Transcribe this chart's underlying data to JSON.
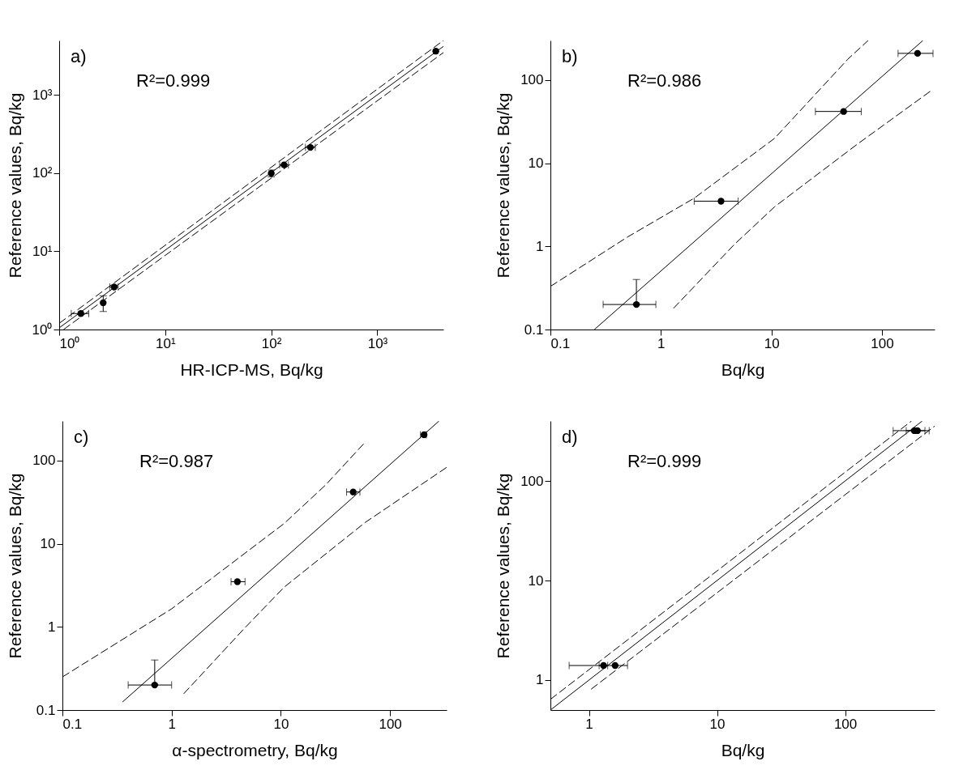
{
  "chart_data": [
    {
      "type": "scatter",
      "xlabel": "HR-ICP-MS, Bq/kg",
      "ylabel": "Reference values, Bq/kg",
      "annotations": [
        "a)",
        "R²=0.999"
      ],
      "log": "xy",
      "xlim": [
        1,
        4200
      ],
      "ylim": [
        1,
        5000
      ],
      "xticks": [
        {
          "value": 1,
          "label": "10⁰"
        },
        {
          "value": 10,
          "label": "10¹"
        },
        {
          "value": 100,
          "label": "10²"
        },
        {
          "value": 1000,
          "label": "10³"
        }
      ],
      "yticks": [
        {
          "value": 1,
          "label": "10⁰"
        },
        {
          "value": 10,
          "label": "10¹"
        },
        {
          "value": 100,
          "label": "10²"
        },
        {
          "value": 1000,
          "label": "10³"
        }
      ],
      "series": [
        {
          "marker": "circle",
          "color": "#000000",
          "x": [
            1.6,
            2.6,
            3.3,
            100,
            132,
            234,
            3560
          ],
          "values": [
            1.6,
            2.2,
            3.5,
            100,
            128,
            214,
            3650
          ],
          "errors": [
            null,
            [
              1.7,
              2.7
            ],
            null,
            [
              90,
              110
            ],
            null,
            null,
            null
          ],
          "xerrors": [
            [
              1.3,
              1.9
            ],
            null,
            [
              3.0,
              3.6
            ],
            null,
            [
              120,
              145
            ],
            [
              210,
              260
            ],
            null
          ]
        },
        {
          "type": "line",
          "color": "#000000",
          "line_style": "solid",
          "x": [
            1,
            4200
          ],
          "values": [
            1.05,
            4200
          ]
        },
        {
          "type": "line",
          "color": "#000000",
          "line_style": "dashed",
          "x": [
            1,
            4200
          ],
          "values": [
            1.2,
            5000
          ]
        },
        {
          "type": "line",
          "color": "#000000",
          "line_style": "dashed",
          "x": [
            1.1,
            4200
          ],
          "values": [
            1,
            3500
          ]
        }
      ]
    },
    {
      "type": "scatter",
      "xlabel": "Bq/kg",
      "ylabel": "Reference values, Bq/kg",
      "annotations": [
        "b)",
        "R²=0.986"
      ],
      "log": "xy",
      "xlim": [
        0.1,
        300
      ],
      "ylim": [
        0.1,
        300
      ],
      "xticks": [
        0.1,
        1,
        10,
        100
      ],
      "yticks": [
        0.1,
        1,
        10,
        100
      ],
      "series": [
        {
          "marker": "circle",
          "color": "#000000",
          "x": [
            0.6,
            3.5,
            45,
            210
          ],
          "values": [
            0.2,
            3.5,
            42,
            210
          ],
          "errors": [
            [
              0.2,
              0.4
            ],
            null,
            null,
            null
          ],
          "xerrors": [
            [
              0.3,
              0.9
            ],
            [
              2,
              5
            ],
            [
              25,
              65
            ],
            [
              140,
              290
            ]
          ]
        },
        {
          "type": "line",
          "color": "#000000",
          "line_style": "solid",
          "x": [
            0.25,
            235
          ],
          "values": [
            0.1,
            300
          ]
        },
        {
          "type": "line",
          "color": "#000000",
          "line_style": "dashed",
          "x": [
            0.1,
            0.5,
            2,
            10.7,
            49,
            75
          ],
          "values": [
            0.33,
            1.3,
            3.8,
            20,
            178,
            300
          ]
        },
        {
          "type": "line",
          "color": "#000000",
          "line_style": "dashed",
          "x": [
            1.3,
            4.6,
            10.7,
            60,
            276
          ],
          "values": [
            0.18,
            1.05,
            3,
            17,
            74
          ]
        }
      ]
    },
    {
      "type": "scatter",
      "xlabel": "α-spectrometry, Bq/kg",
      "ylabel": "Reference values, Bq/kg",
      "annotations": [
        "c)",
        "R²=0.987"
      ],
      "log": "xy",
      "xlim": [
        0.1,
        330
      ],
      "ylim": [
        0.1,
        300
      ],
      "xticks": [
        0.1,
        1,
        10,
        100
      ],
      "yticks": [
        0.1,
        1,
        10,
        100
      ],
      "series": [
        {
          "marker": "circle",
          "color": "#000000",
          "x": [
            0.7,
            4,
            46,
            205
          ],
          "values": [
            0.2,
            3.5,
            42,
            205
          ],
          "errors": [
            [
              0.2,
              0.4
            ],
            null,
            null,
            null
          ],
          "xerrors": [
            [
              0.4,
              1.0
            ],
            [
              3.5,
              4.7
            ],
            [
              40,
              53
            ],
            [
              190,
              215
            ]
          ]
        },
        {
          "type": "line",
          "color": "#000000",
          "line_style": "solid",
          "x": [
            0.355,
            281
          ],
          "values": [
            0.125,
            300
          ]
        },
        {
          "type": "line",
          "color": "#000000",
          "line_style": "dashed",
          "x": [
            0.1,
            1,
            10.7,
            25.7,
            59
          ],
          "values": [
            0.25,
            1.65,
            17.5,
            51,
            166
          ]
        },
        {
          "type": "line",
          "color": "#000000",
          "line_style": "dashed",
          "x": [
            1.29,
            4.6,
            10.7,
            59,
            330
          ],
          "values": [
            0.157,
            0.95,
            3,
            18,
            83
          ]
        }
      ]
    },
    {
      "type": "scatter",
      "xlabel": "Bq/kg",
      "ylabel": "Reference values, Bq/kg",
      "annotations": [
        "d)",
        "R²=0.999"
      ],
      "log": "xy",
      "xlim": [
        0.5,
        500
      ],
      "ylim": [
        0.5,
        400
      ],
      "xticks": [
        1,
        10,
        100
      ],
      "yticks": [
        1,
        10,
        100
      ],
      "series": [
        {
          "marker": "circle",
          "color": "#000000",
          "x": [
            1.3,
            1.6,
            347,
            367
          ],
          "values": [
            1.4,
            1.4,
            320,
            320
          ],
          "errors": [
            null,
            null,
            null,
            null
          ],
          "xerrors": [
            [
              0.7,
              1.4
            ],
            [
              1.2,
              2.0
            ],
            [
              237,
              420
            ],
            [
              300,
              453
            ]
          ]
        },
        {
          "type": "line",
          "color": "#000000",
          "line_style": "solid",
          "x": [
            0.5,
            400
          ],
          "values": [
            0.5,
            400
          ]
        },
        {
          "type": "line",
          "color": "#000000",
          "line_style": "dashed",
          "x": [
            0.5,
            330
          ],
          "values": [
            0.64,
            400
          ]
        },
        {
          "type": "line",
          "color": "#000000",
          "line_style": "dashed",
          "x": [
            1.04,
            500
          ],
          "values": [
            0.81,
            355
          ]
        }
      ]
    }
  ]
}
